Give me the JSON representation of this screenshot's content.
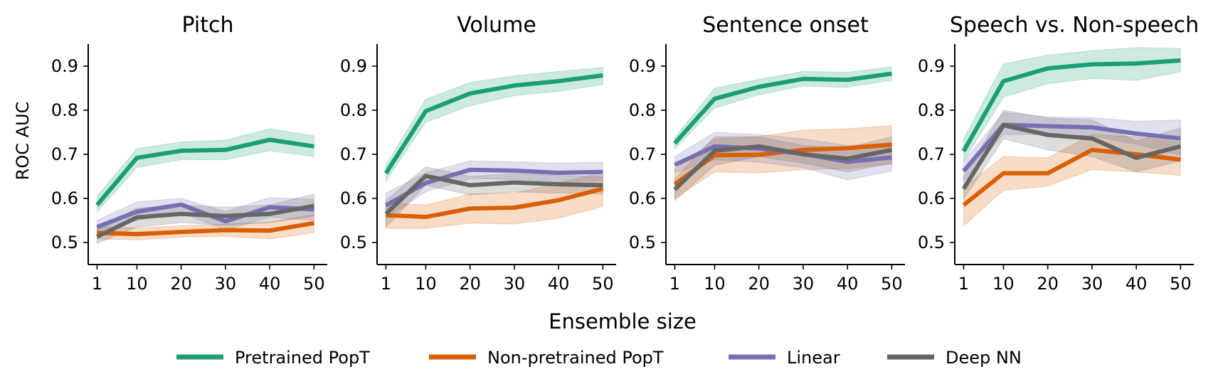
{
  "chart_data": {
    "type": "line",
    "ylabel": "ROC AUC",
    "xlabel": "Ensemble size",
    "x": [
      1,
      10,
      20,
      30,
      40,
      50
    ],
    "xticks": [
      1,
      10,
      20,
      30,
      40,
      50
    ],
    "yticks": [
      0.5,
      0.6,
      0.7,
      0.8,
      0.9
    ],
    "ylim": [
      0.45,
      0.95
    ],
    "xlim": [
      -1,
      53
    ],
    "legend_position": "bottom-center",
    "series_styles": [
      {
        "name": "Pretrained PopT",
        "color": "#1b9e77"
      },
      {
        "name": "Non-pretrained PopT",
        "color": "#d95f02"
      },
      {
        "name": "Linear",
        "color": "#7570b3"
      },
      {
        "name": "Deep NN",
        "color": "#666666"
      }
    ],
    "panels": [
      {
        "title": "Pitch",
        "series": [
          {
            "name": "Pretrained PopT",
            "values": [
              0.585,
              0.692,
              0.708,
              0.71,
              0.733,
              0.718
            ],
            "lower": [
              0.57,
              0.67,
              0.688,
              0.688,
              0.708,
              0.695
            ],
            "upper": [
              0.605,
              0.713,
              0.728,
              0.732,
              0.758,
              0.742
            ]
          },
          {
            "name": "Non-pretrained PopT",
            "values": [
              0.522,
              0.519,
              0.524,
              0.528,
              0.527,
              0.544
            ],
            "lower": [
              0.508,
              0.506,
              0.512,
              0.514,
              0.508,
              0.522
            ],
            "upper": [
              0.536,
              0.533,
              0.538,
              0.542,
              0.546,
              0.564
            ]
          },
          {
            "name": "Linear",
            "values": [
              0.535,
              0.57,
              0.586,
              0.548,
              0.58,
              0.575
            ],
            "lower": [
              0.52,
              0.55,
              0.568,
              0.528,
              0.558,
              0.55
            ],
            "upper": [
              0.55,
              0.592,
              0.6,
              0.57,
              0.602,
              0.598
            ]
          },
          {
            "name": "Deep NN",
            "values": [
              0.513,
              0.557,
              0.565,
              0.56,
              0.565,
              0.583
            ],
            "lower": [
              0.498,
              0.535,
              0.545,
              0.54,
              0.545,
              0.56
            ],
            "upper": [
              0.53,
              0.578,
              0.585,
              0.58,
              0.585,
              0.61
            ]
          }
        ]
      },
      {
        "title": "Volume",
        "series": [
          {
            "name": "Pretrained PopT",
            "values": [
              0.657,
              0.798,
              0.838,
              0.856,
              0.866,
              0.879
            ],
            "lower": [
              0.64,
              0.773,
              0.81,
              0.833,
              0.843,
              0.858
            ],
            "upper": [
              0.675,
              0.825,
              0.863,
              0.878,
              0.888,
              0.897
            ]
          },
          {
            "name": "Non-pretrained PopT",
            "values": [
              0.562,
              0.558,
              0.577,
              0.579,
              0.596,
              0.622
            ],
            "lower": [
              0.532,
              0.532,
              0.544,
              0.542,
              0.555,
              0.582
            ],
            "upper": [
              0.59,
              0.585,
              0.61,
              0.612,
              0.635,
              0.66
            ]
          },
          {
            "name": "Linear",
            "values": [
              0.584,
              0.635,
              0.665,
              0.663,
              0.658,
              0.66
            ],
            "lower": [
              0.555,
              0.615,
              0.645,
              0.643,
              0.638,
              0.64
            ],
            "upper": [
              0.612,
              0.658,
              0.685,
              0.683,
              0.68,
              0.682
            ]
          },
          {
            "name": "Deep NN",
            "values": [
              0.565,
              0.651,
              0.63,
              0.636,
              0.632,
              0.63
            ],
            "lower": [
              0.535,
              0.63,
              0.608,
              0.615,
              0.612,
              0.61
            ],
            "upper": [
              0.595,
              0.672,
              0.65,
              0.656,
              0.652,
              0.65
            ]
          }
        ]
      },
      {
        "title": "Sentence onset",
        "series": [
          {
            "name": "Pretrained PopT",
            "values": [
              0.725,
              0.826,
              0.853,
              0.871,
              0.869,
              0.883
            ],
            "lower": [
              0.712,
              0.805,
              0.835,
              0.855,
              0.852,
              0.868
            ],
            "upper": [
              0.738,
              0.85,
              0.87,
              0.888,
              0.886,
              0.898
            ]
          },
          {
            "name": "Non-pretrained PopT",
            "values": [
              0.632,
              0.698,
              0.699,
              0.71,
              0.714,
              0.722
            ],
            "lower": [
              0.6,
              0.66,
              0.658,
              0.665,
              0.668,
              0.678
            ],
            "upper": [
              0.665,
              0.735,
              0.74,
              0.755,
              0.758,
              0.765
            ]
          },
          {
            "name": "Linear",
            "values": [
              0.676,
              0.718,
              0.713,
              0.701,
              0.683,
              0.693
            ],
            "lower": [
              0.658,
              0.688,
              0.682,
              0.67,
              0.642,
              0.662
            ],
            "upper": [
              0.695,
              0.75,
              0.745,
              0.735,
              0.72,
              0.725
            ]
          },
          {
            "name": "Deep NN",
            "values": [
              0.62,
              0.708,
              0.718,
              0.7,
              0.69,
              0.71
            ],
            "lower": [
              0.595,
              0.675,
              0.695,
              0.68,
              0.66,
              0.68
            ],
            "upper": [
              0.645,
              0.74,
              0.74,
              0.72,
              0.715,
              0.74
            ]
          }
        ]
      },
      {
        "title": "Speech vs. Non-speech",
        "series": [
          {
            "name": "Pretrained PopT",
            "values": [
              0.707,
              0.866,
              0.895,
              0.904,
              0.906,
              0.913
            ],
            "lower": [
              0.685,
              0.83,
              0.86,
              0.872,
              0.868,
              0.887
            ],
            "upper": [
              0.735,
              0.905,
              0.925,
              0.935,
              0.942,
              0.94
            ]
          },
          {
            "name": "Non-pretrained PopT",
            "values": [
              0.585,
              0.657,
              0.657,
              0.71,
              0.7,
              0.688
            ],
            "lower": [
              0.538,
              0.618,
              0.628,
              0.665,
              0.66,
              0.652
            ],
            "upper": [
              0.625,
              0.695,
              0.692,
              0.745,
              0.74,
              0.728
            ]
          },
          {
            "name": "Linear",
            "values": [
              0.662,
              0.767,
              0.764,
              0.761,
              0.747,
              0.736
            ],
            "lower": [
              0.64,
              0.745,
              0.745,
              0.742,
              0.723,
              0.698
            ],
            "upper": [
              0.684,
              0.795,
              0.785,
              0.783,
              0.775,
              0.778
            ]
          },
          {
            "name": "Deep NN",
            "values": [
              0.622,
              0.766,
              0.744,
              0.736,
              0.692,
              0.718
            ],
            "lower": [
              0.598,
              0.735,
              0.71,
              0.695,
              0.66,
              0.685
            ],
            "upper": [
              0.65,
              0.8,
              0.782,
              0.778,
              0.73,
              0.76
            ]
          }
        ]
      }
    ]
  }
}
